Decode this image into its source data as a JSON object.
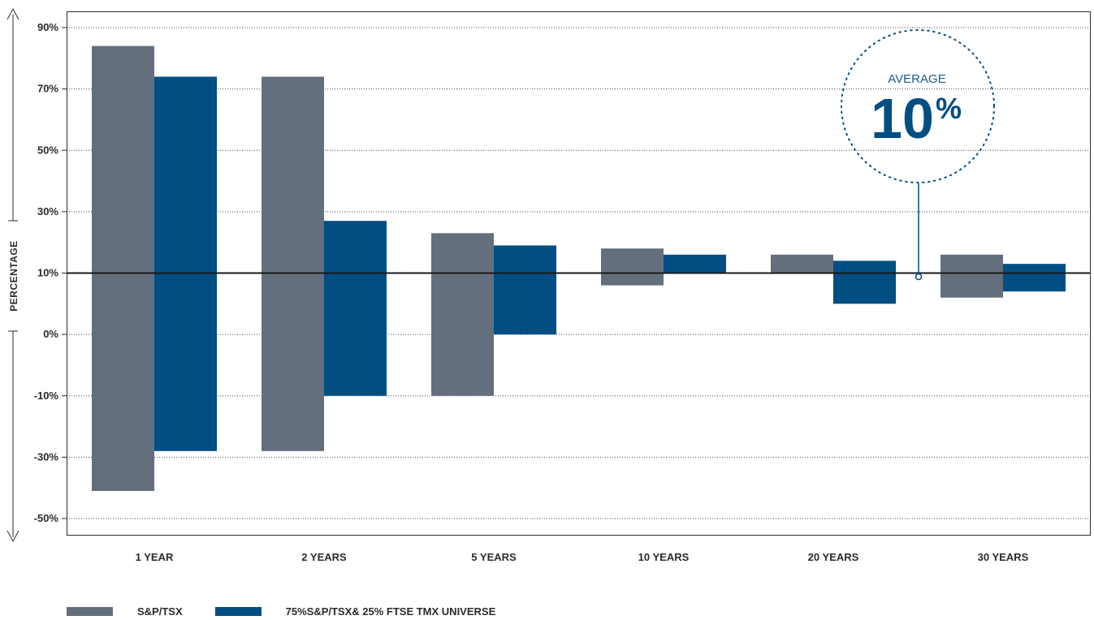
{
  "chart_data": {
    "type": "bar",
    "subtype": "floating-range",
    "title": "",
    "xlabel": "",
    "ylabel": "PERCENTAGE",
    "y_ticks": [
      {
        "label": "90%",
        "value": 90
      },
      {
        "label": "70%",
        "value": 70
      },
      {
        "label": "50%",
        "value": 50
      },
      {
        "label": "30%",
        "value": 30
      },
      {
        "label": "10%",
        "value": 10
      },
      {
        "label": "0%",
        "value": 0
      },
      {
        "label": "-10%",
        "value": -10
      },
      {
        "label": "-30%",
        "value": -30
      },
      {
        "label": "-50%",
        "value": -50
      }
    ],
    "categories": [
      "1 YEAR",
      "2 YEARS",
      "5 YEARS",
      "10 YEARS",
      "20 YEARS",
      "30 YEARS"
    ],
    "series": [
      {
        "name": "S&P/TSX",
        "color": "#646f7d",
        "ranges": [
          [
            -41,
            84
          ],
          [
            -28,
            74
          ],
          [
            -10,
            23
          ],
          [
            8,
            18
          ],
          [
            10,
            16
          ],
          [
            6,
            16
          ]
        ]
      },
      {
        "name": "75%S&P/TSX& 25% FTSE TMX UNIVERSE",
        "color": "#004e82",
        "ranges": [
          [
            -28,
            74
          ],
          [
            -10,
            27
          ],
          [
            0,
            19
          ],
          [
            10,
            16
          ],
          [
            5,
            14
          ],
          [
            7,
            13
          ]
        ]
      }
    ],
    "reference_line": {
      "value": 10
    },
    "annotation": {
      "label": "AVERAGE",
      "value": "10",
      "unit": "%"
    },
    "grid": true,
    "legend_position": "bottom-left"
  }
}
